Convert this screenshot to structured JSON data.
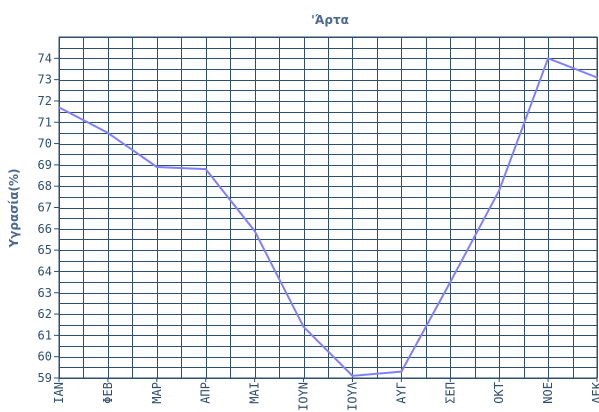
{
  "chart_data": {
    "type": "line",
    "title": "'Άρτα",
    "xlabel": "",
    "ylabel": "Υγρασία(%)",
    "categories": [
      "ΙΑΝ",
      "ΦΕΒ",
      "ΜΑΡ",
      "ΑΠΡ",
      "ΜΑΙ",
      "ΙΟΥΝ",
      "ΙΟΥΛ",
      "ΑΥΓ",
      "ΣΕΠ",
      "ΟΚΤ",
      "ΝΟΕ",
      "ΔΕΚ"
    ],
    "values": [
      71.7,
      70.5,
      68.9,
      68.8,
      65.9,
      61.4,
      59.1,
      59.3,
      63.5,
      67.8,
      74.0,
      73.1
    ],
    "ylim": [
      59,
      75
    ],
    "yticks": [
      59,
      60,
      61,
      62,
      63,
      64,
      65,
      66,
      67,
      68,
      69,
      70,
      71,
      72,
      73,
      74
    ],
    "grid": true,
    "colors": {
      "line": "#8080ff",
      "grid": "#2f4f6f",
      "text": "#2f4f6f",
      "title": "#4a6a94"
    }
  }
}
